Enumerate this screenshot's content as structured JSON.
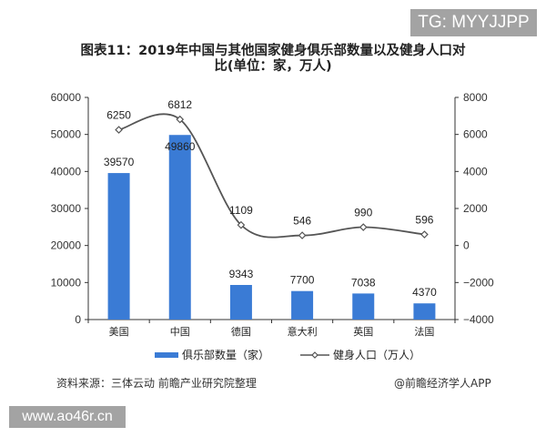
{
  "watermark_top": "TG: MYYJJPP",
  "watermark_bottom": "www.ao46r.cn",
  "title_line1": "图表11：2019年中国与其他国家健身俱乐部数量以及健身人口对",
  "title_line2": "比(单位：家，万人)",
  "source": "资料来源：三体云动 前瞻产业研究院整理",
  "credit": "@前瞻经济学人APP",
  "legend": {
    "bar": "俱乐部数量（家）",
    "line": "健身人口（万人）"
  },
  "colors": {
    "bar": "#3a7bd5",
    "line": "#555555"
  },
  "chart_data": {
    "type": "bar+line",
    "title": "图表11：2019年中国与其他国家健身俱乐部数量以及健身人口对比(单位：家，万人)",
    "categories": [
      "美国",
      "中国",
      "德国",
      "意大利",
      "英国",
      "法国"
    ],
    "series": [
      {
        "name": "俱乐部数量（家）",
        "type": "bar",
        "axis": "left",
        "values": [
          39570,
          49860,
          9343,
          7700,
          7038,
          4370
        ]
      },
      {
        "name": "健身人口（万人）",
        "type": "line",
        "axis": "right",
        "smooth": true,
        "values": [
          6250,
          6812,
          1109,
          546,
          990,
          596
        ]
      }
    ],
    "left_axis": {
      "ylim": [
        0,
        60000
      ],
      "ticks": [
        "0",
        "10000",
        "20000",
        "30000",
        "40000",
        "50000",
        "60000"
      ]
    },
    "right_axis": {
      "ylim": [
        -4000,
        8000
      ],
      "ticks": [
        "-4000",
        "-2000",
        "0",
        "2000",
        "4000",
        "6000",
        "8000"
      ]
    },
    "grid": false,
    "legend_position": "bottom"
  }
}
